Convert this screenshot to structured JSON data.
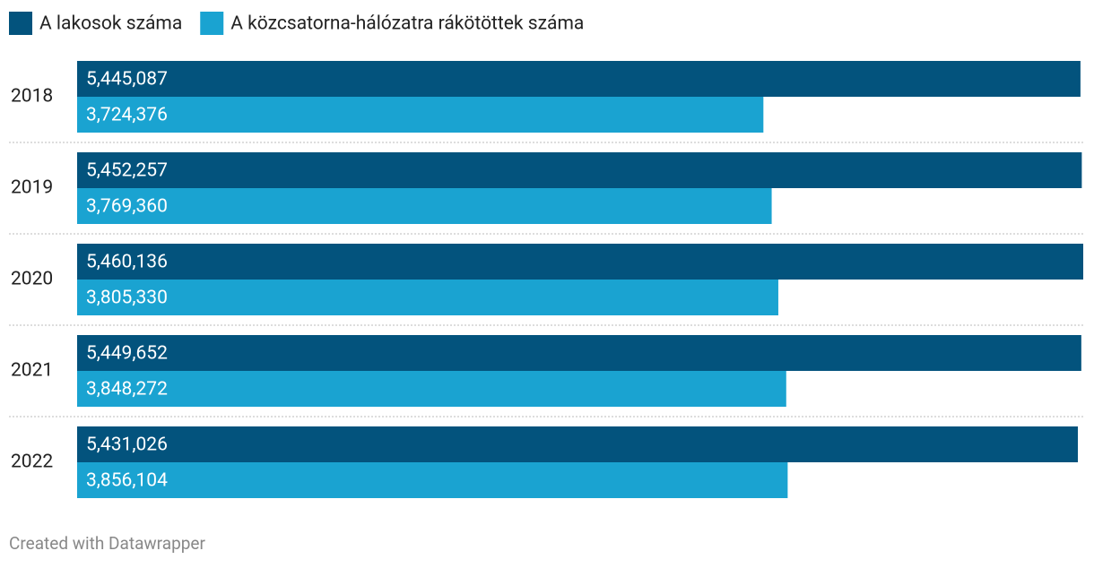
{
  "chart_data": {
    "type": "bar",
    "orientation": "horizontal",
    "categories": [
      "2018",
      "2019",
      "2020",
      "2021",
      "2022"
    ],
    "series": [
      {
        "name": "A lakosok száma",
        "color": "#03537d",
        "values": [
          5445087,
          5452257,
          5460136,
          5449652,
          5431026
        ],
        "value_labels": [
          "5,445,087",
          "5,452,257",
          "5,460,136",
          "5,449,652",
          "5,431,026"
        ]
      },
      {
        "name": "A közcsatorna-hálózatra rákötöttek száma",
        "color": "#1aa3d1",
        "values": [
          3724376,
          3769360,
          3805330,
          3848272,
          3856104
        ],
        "value_labels": [
          "3,724,376",
          "3,769,360",
          "3,805,330",
          "3,848,272",
          "3,856,104"
        ]
      }
    ],
    "credit": "Created with Datawrapper"
  }
}
